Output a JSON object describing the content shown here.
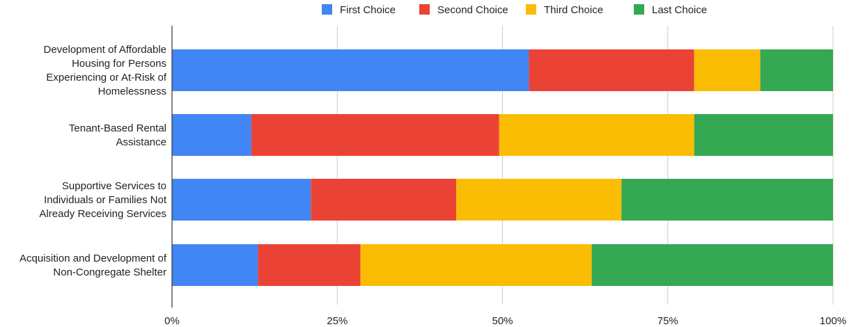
{
  "chart_data": {
    "type": "bar",
    "orientation": "horizontal",
    "stacked": "percent",
    "title": "",
    "xlabel": "",
    "ylabel": "",
    "categories": [
      [
        "Development of Affordable",
        "Housing for Persons",
        "Experiencing or At-Risk of",
        "Homelessness"
      ],
      [
        "Tenant-Based Rental",
        "Assistance"
      ],
      [
        "Supportive Services to",
        "Individuals or Families Not",
        "Already Receiving Services"
      ],
      [
        "Acquisition and Development of",
        "Non-Congregate Shelter"
      ]
    ],
    "series": [
      {
        "name": "First Choice",
        "color": "#4285f4",
        "values": [
          54,
          12,
          21,
          13
        ]
      },
      {
        "name": "Second Choice",
        "color": "#ea4335",
        "values": [
          25,
          37.5,
          22,
          15.5
        ]
      },
      {
        "name": "Third Choice",
        "color": "#fbbc04",
        "values": [
          10,
          29.5,
          25,
          35
        ]
      },
      {
        "name": "Last Choice",
        "color": "#34a853",
        "values": [
          11,
          21,
          32,
          36.5
        ]
      }
    ],
    "xlim": [
      0,
      100
    ],
    "x_ticks": [
      "0%",
      "25%",
      "50%",
      "75%",
      "100%"
    ],
    "grid": true,
    "legend_position": "top"
  }
}
